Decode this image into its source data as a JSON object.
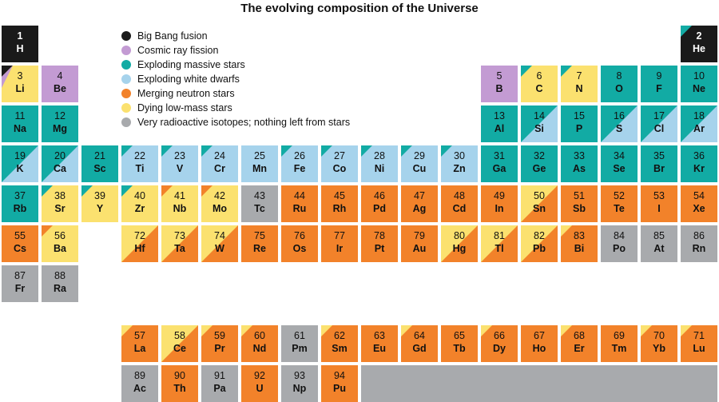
{
  "title": "The evolving composition of the Universe",
  "colors": {
    "bigbang": "#1a1a1a",
    "cosmic": "#c39bd3",
    "massive": "#12aba4",
    "whitedwarf": "#a6d3ec",
    "neutron": "#f2822a",
    "lowmass": "#fbe16f",
    "radioactive": "#a8aaad"
  },
  "legend": [
    {
      "key": "bigbang",
      "label": "Big Bang fusion"
    },
    {
      "key": "cosmic",
      "label": "Cosmic ray fission"
    },
    {
      "key": "massive",
      "label": "Exploding massive stars"
    },
    {
      "key": "whitedwarf",
      "label": "Exploding white dwarfs"
    },
    {
      "key": "neutron",
      "label": "Merging neutron stars"
    },
    {
      "key": "lowmass",
      "label": "Dying low-mass stars"
    },
    {
      "key": "radioactive",
      "label": "Very  radioactive isotopes; nothing left from stars"
    }
  ],
  "elements": [
    {
      "n": "1",
      "s": "H",
      "r": 0,
      "c": 0,
      "bg": "bigbang"
    },
    {
      "n": "2",
      "s": "He",
      "r": 0,
      "c": 17,
      "bg": "bigbang",
      "tri": "massive"
    },
    {
      "n": "3",
      "s": "Li",
      "r": 1,
      "c": 0,
      "bg": "lowmass",
      "tri": "bigbang",
      "tri2": "cosmic"
    },
    {
      "n": "4",
      "s": "Be",
      "r": 1,
      "c": 1,
      "bg": "cosmic"
    },
    {
      "n": "5",
      "s": "B",
      "r": 1,
      "c": 12,
      "bg": "cosmic"
    },
    {
      "n": "6",
      "s": "C",
      "r": 1,
      "c": 13,
      "bg": "lowmass",
      "tri": "massive"
    },
    {
      "n": "7",
      "s": "N",
      "r": 1,
      "c": 14,
      "bg": "lowmass",
      "tri": "massive"
    },
    {
      "n": "8",
      "s": "O",
      "r": 1,
      "c": 15,
      "bg": "massive"
    },
    {
      "n": "9",
      "s": "F",
      "r": 1,
      "c": 16,
      "bg": "massive"
    },
    {
      "n": "10",
      "s": "Ne",
      "r": 1,
      "c": 17,
      "bg": "massive"
    },
    {
      "n": "11",
      "s": "Na",
      "r": 2,
      "c": 0,
      "bg": "massive"
    },
    {
      "n": "12",
      "s": "Mg",
      "r": 2,
      "c": 1,
      "bg": "massive"
    },
    {
      "n": "13",
      "s": "Al",
      "r": 2,
      "c": 12,
      "bg": "massive"
    },
    {
      "n": "14",
      "s": "Si",
      "r": 2,
      "c": 13,
      "bg": "massive",
      "wedge": "whitedwarf"
    },
    {
      "n": "15",
      "s": "P",
      "r": 2,
      "c": 14,
      "bg": "massive"
    },
    {
      "n": "16",
      "s": "S",
      "r": 2,
      "c": 15,
      "bg": "massive",
      "wedge": "whitedwarf"
    },
    {
      "n": "17",
      "s": "Cl",
      "r": 2,
      "c": 16,
      "bg": "massive",
      "wedge": "whitedwarf"
    },
    {
      "n": "18",
      "s": "Ar",
      "r": 2,
      "c": 17,
      "bg": "massive",
      "wedge": "whitedwarf"
    },
    {
      "n": "19",
      "s": "K",
      "r": 3,
      "c": 0,
      "bg": "massive",
      "wedge": "whitedwarf"
    },
    {
      "n": "20",
      "s": "Ca",
      "r": 3,
      "c": 1,
      "bg": "massive",
      "wedge": "whitedwarf"
    },
    {
      "n": "21",
      "s": "Sc",
      "r": 3,
      "c": 2,
      "bg": "massive"
    },
    {
      "n": "22",
      "s": "Ti",
      "r": 3,
      "c": 3,
      "bg": "whitedwarf",
      "tri": "massive"
    },
    {
      "n": "23",
      "s": "V",
      "r": 3,
      "c": 4,
      "bg": "whitedwarf",
      "tri": "massive"
    },
    {
      "n": "24",
      "s": "Cr",
      "r": 3,
      "c": 5,
      "bg": "whitedwarf",
      "tri": "massive"
    },
    {
      "n": "25",
      "s": "Mn",
      "r": 3,
      "c": 6,
      "bg": "whitedwarf"
    },
    {
      "n": "26",
      "s": "Fe",
      "r": 3,
      "c": 7,
      "bg": "whitedwarf",
      "tri": "massive"
    },
    {
      "n": "27",
      "s": "Co",
      "r": 3,
      "c": 8,
      "bg": "whitedwarf",
      "tri": "massive"
    },
    {
      "n": "28",
      "s": "Ni",
      "r": 3,
      "c": 9,
      "bg": "whitedwarf",
      "tri": "massive"
    },
    {
      "n": "29",
      "s": "Cu",
      "r": 3,
      "c": 10,
      "bg": "whitedwarf",
      "tri": "massive"
    },
    {
      "n": "30",
      "s": "Zn",
      "r": 3,
      "c": 11,
      "bg": "whitedwarf",
      "tri": "massive"
    },
    {
      "n": "31",
      "s": "Ga",
      "r": 3,
      "c": 12,
      "bg": "massive"
    },
    {
      "n": "32",
      "s": "Ge",
      "r": 3,
      "c": 13,
      "bg": "massive"
    },
    {
      "n": "33",
      "s": "As",
      "r": 3,
      "c": 14,
      "bg": "massive"
    },
    {
      "n": "34",
      "s": "Se",
      "r": 3,
      "c": 15,
      "bg": "massive"
    },
    {
      "n": "35",
      "s": "Br",
      "r": 3,
      "c": 16,
      "bg": "massive"
    },
    {
      "n": "36",
      "s": "Kr",
      "r": 3,
      "c": 17,
      "bg": "massive"
    },
    {
      "n": "37",
      "s": "Rb",
      "r": 4,
      "c": 0,
      "bg": "massive"
    },
    {
      "n": "38",
      "s": "Sr",
      "r": 4,
      "c": 1,
      "bg": "lowmass",
      "tri": "massive"
    },
    {
      "n": "39",
      "s": "Y",
      "r": 4,
      "c": 2,
      "bg": "lowmass",
      "tri": "massive"
    },
    {
      "n": "40",
      "s": "Zr",
      "r": 4,
      "c": 3,
      "bg": "lowmass",
      "tri": "massive"
    },
    {
      "n": "41",
      "s": "Nb",
      "r": 4,
      "c": 4,
      "bg": "lowmass",
      "tri": "neutron"
    },
    {
      "n": "42",
      "s": "Mo",
      "r": 4,
      "c": 5,
      "bg": "lowmass",
      "tri": "neutron"
    },
    {
      "n": "43",
      "s": "Tc",
      "r": 4,
      "c": 6,
      "bg": "radioactive"
    },
    {
      "n": "44",
      "s": "Ru",
      "r": 4,
      "c": 7,
      "bg": "neutron"
    },
    {
      "n": "45",
      "s": "Rh",
      "r": 4,
      "c": 8,
      "bg": "neutron"
    },
    {
      "n": "46",
      "s": "Pd",
      "r": 4,
      "c": 9,
      "bg": "neutron"
    },
    {
      "n": "47",
      "s": "Ag",
      "r": 4,
      "c": 10,
      "bg": "neutron"
    },
    {
      "n": "48",
      "s": "Cd",
      "r": 4,
      "c": 11,
      "bg": "neutron"
    },
    {
      "n": "49",
      "s": "In",
      "r": 4,
      "c": 12,
      "bg": "neutron"
    },
    {
      "n": "50",
      "s": "Sn",
      "r": 4,
      "c": 13,
      "bg": "lowmass",
      "wedge": "neutron"
    },
    {
      "n": "51",
      "s": "Sb",
      "r": 4,
      "c": 14,
      "bg": "neutron"
    },
    {
      "n": "52",
      "s": "Te",
      "r": 4,
      "c": 15,
      "bg": "neutron"
    },
    {
      "n": "53",
      "s": "I",
      "r": 4,
      "c": 16,
      "bg": "neutron"
    },
    {
      "n": "54",
      "s": "Xe",
      "r": 4,
      "c": 17,
      "bg": "neutron"
    },
    {
      "n": "55",
      "s": "Cs",
      "r": 5,
      "c": 0,
      "bg": "neutron"
    },
    {
      "n": "56",
      "s": "Ba",
      "r": 5,
      "c": 1,
      "bg": "lowmass",
      "tri": "neutron"
    },
    {
      "n": "72",
      "s": "Hf",
      "r": 5,
      "c": 3,
      "bg": "lowmass",
      "wedge": "neutron"
    },
    {
      "n": "73",
      "s": "Ta",
      "r": 5,
      "c": 4,
      "bg": "lowmass",
      "wedge": "neutron"
    },
    {
      "n": "74",
      "s": "W",
      "r": 5,
      "c": 5,
      "bg": "lowmass",
      "wedge": "neutron"
    },
    {
      "n": "75",
      "s": "Re",
      "r": 5,
      "c": 6,
      "bg": "neutron"
    },
    {
      "n": "76",
      "s": "Os",
      "r": 5,
      "c": 7,
      "bg": "neutron"
    },
    {
      "n": "77",
      "s": "Ir",
      "r": 5,
      "c": 8,
      "bg": "neutron"
    },
    {
      "n": "78",
      "s": "Pt",
      "r": 5,
      "c": 9,
      "bg": "neutron"
    },
    {
      "n": "79",
      "s": "Au",
      "r": 5,
      "c": 10,
      "bg": "neutron"
    },
    {
      "n": "80",
      "s": "Hg",
      "r": 5,
      "c": 11,
      "bg": "lowmass",
      "wedge": "neutron"
    },
    {
      "n": "81",
      "s": "Tl",
      "r": 5,
      "c": 12,
      "bg": "lowmass",
      "wedge": "neutron"
    },
    {
      "n": "82",
      "s": "Pb",
      "r": 5,
      "c": 13,
      "bg": "lowmass",
      "wedge": "neutron"
    },
    {
      "n": "83",
      "s": "Bi",
      "r": 5,
      "c": 14,
      "bg": "neutron",
      "tri": "lowmass"
    },
    {
      "n": "84",
      "s": "Po",
      "r": 5,
      "c": 15,
      "bg": "radioactive"
    },
    {
      "n": "85",
      "s": "At",
      "r": 5,
      "c": 16,
      "bg": "radioactive"
    },
    {
      "n": "86",
      "s": "Rn",
      "r": 5,
      "c": 17,
      "bg": "radioactive"
    },
    {
      "n": "87",
      "s": "Fr",
      "r": 6,
      "c": 0,
      "bg": "radioactive"
    },
    {
      "n": "88",
      "s": "Ra",
      "r": 6,
      "c": 1,
      "bg": "radioactive"
    },
    {
      "n": "57",
      "s": "La",
      "r": 8,
      "c": 3,
      "bg": "neutron",
      "tri": "lowmass"
    },
    {
      "n": "58",
      "s": "Ce",
      "r": 8,
      "c": 4,
      "bg": "lowmass",
      "wedge": "neutron"
    },
    {
      "n": "59",
      "s": "Pr",
      "r": 8,
      "c": 5,
      "bg": "neutron",
      "tri": "lowmass"
    },
    {
      "n": "60",
      "s": "Nd",
      "r": 8,
      "c": 6,
      "bg": "neutron",
      "tri": "lowmass"
    },
    {
      "n": "61",
      "s": "Pm",
      "r": 8,
      "c": 7,
      "bg": "radioactive"
    },
    {
      "n": "62",
      "s": "Sm",
      "r": 8,
      "c": 8,
      "bg": "neutron",
      "tri": "lowmass"
    },
    {
      "n": "63",
      "s": "Eu",
      "r": 8,
      "c": 9,
      "bg": "neutron"
    },
    {
      "n": "64",
      "s": "Gd",
      "r": 8,
      "c": 10,
      "bg": "neutron",
      "tri": "lowmass"
    },
    {
      "n": "65",
      "s": "Tb",
      "r": 8,
      "c": 11,
      "bg": "neutron"
    },
    {
      "n": "66",
      "s": "Dy",
      "r": 8,
      "c": 12,
      "bg": "neutron",
      "tri": "lowmass"
    },
    {
      "n": "67",
      "s": "Ho",
      "r": 8,
      "c": 13,
      "bg": "neutron"
    },
    {
      "n": "68",
      "s": "Er",
      "r": 8,
      "c": 14,
      "bg": "neutron",
      "tri": "lowmass"
    },
    {
      "n": "69",
      "s": "Tm",
      "r": 8,
      "c": 15,
      "bg": "neutron"
    },
    {
      "n": "70",
      "s": "Yb",
      "r": 8,
      "c": 16,
      "bg": "neutron",
      "tri": "lowmass"
    },
    {
      "n": "71",
      "s": "Lu",
      "r": 8,
      "c": 17,
      "bg": "neutron",
      "tri": "lowmass"
    },
    {
      "n": "89",
      "s": "Ac",
      "r": 9,
      "c": 3,
      "bg": "radioactive"
    },
    {
      "n": "90",
      "s": "Th",
      "r": 9,
      "c": 4,
      "bg": "neutron"
    },
    {
      "n": "91",
      "s": "Pa",
      "r": 9,
      "c": 5,
      "bg": "radioactive"
    },
    {
      "n": "92",
      "s": "U",
      "r": 9,
      "c": 6,
      "bg": "neutron"
    },
    {
      "n": "93",
      "s": "Np",
      "r": 9,
      "c": 7,
      "bg": "radioactive"
    },
    {
      "n": "94",
      "s": "Pu",
      "r": 9,
      "c": 8,
      "bg": "neutron"
    }
  ]
}
